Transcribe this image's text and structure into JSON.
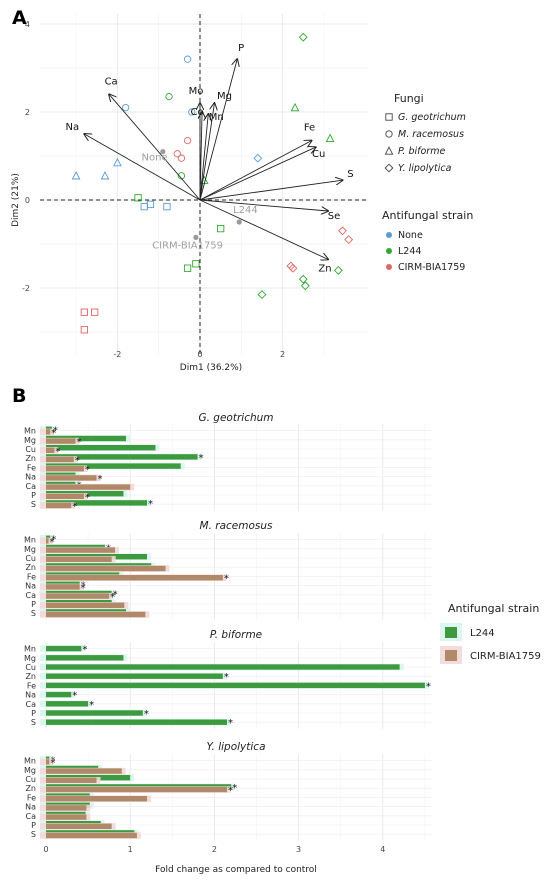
{
  "chart_data": [
    {
      "panel": "A",
      "type": "scatter",
      "subtype": "pca-biplot",
      "xlabel": "Dim1 (36.2%)",
      "ylabel": "Dim2 (21%)",
      "xlim": [
        -3.5,
        4
      ],
      "ylim": [
        -3.2,
        4
      ],
      "xticks": [
        "-2",
        "0",
        "2"
      ],
      "yticks": [
        "4",
        "2",
        "0",
        "-2"
      ],
      "grid": true,
      "variables": [
        {
          "name": "P",
          "x": 0.9,
          "y": 3.2
        },
        {
          "name": "Mo",
          "x": 0.0,
          "y": 2.2
        },
        {
          "name": "Mg",
          "x": 0.35,
          "y": 2.2
        },
        {
          "name": "Co",
          "x": 0.05,
          "y": 2.0
        },
        {
          "name": "Mn",
          "x": 0.2,
          "y": 1.95
        },
        {
          "name": "Ca",
          "x": -2.2,
          "y": 2.4
        },
        {
          "name": "Na",
          "x": -2.8,
          "y": 1.5
        },
        {
          "name": "Fe",
          "x": 2.7,
          "y": 1.35
        },
        {
          "name": "Cu",
          "x": 2.8,
          "y": 1.2
        },
        {
          "name": "S",
          "x": 3.45,
          "y": 0.45
        },
        {
          "name": "Se",
          "x": 3.1,
          "y": -0.25
        },
        {
          "name": "Zn",
          "x": 3.1,
          "y": -1.35
        }
      ],
      "centroid_labels": [
        {
          "name": "None",
          "x": -1.1,
          "y": 0.9
        },
        {
          "name": "L244",
          "x": 1.1,
          "y": -0.3
        },
        {
          "name": "CIRM-BIA1759",
          "x": -0.3,
          "y": -1.1
        }
      ],
      "centroids": [
        {
          "strain": "None",
          "x": -0.9,
          "y": 1.1
        },
        {
          "strain": "L244",
          "x": 0.95,
          "y": -0.5
        },
        {
          "strain": "CIRM-BIA1759",
          "x": -0.1,
          "y": -0.85
        }
      ],
      "points": [
        {
          "fungus": "G. geotrichum",
          "strain": "None",
          "x": -1.35,
          "y": -0.15
        },
        {
          "fungus": "G. geotrichum",
          "strain": "None",
          "x": -1.2,
          "y": -0.1
        },
        {
          "fungus": "G. geotrichum",
          "strain": "None",
          "x": -0.8,
          "y": -0.15
        },
        {
          "fungus": "G. geotrichum",
          "strain": "L244",
          "x": -0.3,
          "y": -1.55
        },
        {
          "fungus": "G. geotrichum",
          "strain": "L244",
          "x": -0.1,
          "y": -1.45
        },
        {
          "fungus": "G. geotrichum",
          "strain": "L244",
          "x": 0.5,
          "y": -0.65
        },
        {
          "fungus": "G. geotrichum",
          "strain": "L244",
          "x": -1.5,
          "y": 0.05
        },
        {
          "fungus": "G. geotrichum",
          "strain": "CIRM-BIA1759",
          "x": -2.8,
          "y": -2.55
        },
        {
          "fungus": "G. geotrichum",
          "strain": "CIRM-BIA1759",
          "x": -2.55,
          "y": -2.55
        },
        {
          "fungus": "G. geotrichum",
          "strain": "CIRM-BIA1759",
          "x": -2.8,
          "y": -2.95
        },
        {
          "fungus": "M. racemosus",
          "strain": "None",
          "x": -1.8,
          "y": 2.1
        },
        {
          "fungus": "M. racemosus",
          "strain": "None",
          "x": -0.3,
          "y": 3.2
        },
        {
          "fungus": "M. racemosus",
          "strain": "None",
          "x": -0.2,
          "y": 2.0
        },
        {
          "fungus": "M. racemosus",
          "strain": "L244",
          "x": -0.75,
          "y": 2.35
        },
        {
          "fungus": "M. racemosus",
          "strain": "L244",
          "x": -0.45,
          "y": 0.55
        },
        {
          "fungus": "M. racemosus",
          "strain": "CIRM-BIA1759",
          "x": -0.3,
          "y": 1.35
        },
        {
          "fungus": "M. racemosus",
          "strain": "CIRM-BIA1759",
          "x": -0.55,
          "y": 1.05
        },
        {
          "fungus": "M. racemosus",
          "strain": "CIRM-BIA1759",
          "x": -0.45,
          "y": 0.95
        },
        {
          "fungus": "P. biforme",
          "strain": "None",
          "x": -3.0,
          "y": 0.55
        },
        {
          "fungus": "P. biforme",
          "strain": "None",
          "x": -2.0,
          "y": 0.85
        },
        {
          "fungus": "P. biforme",
          "strain": "None",
          "x": -2.3,
          "y": 0.55
        },
        {
          "fungus": "P. biforme",
          "strain": "L244",
          "x": 2.3,
          "y": 2.1
        },
        {
          "fungus": "P. biforme",
          "strain": "L244",
          "x": 3.15,
          "y": 1.4
        },
        {
          "fungus": "P. biforme",
          "strain": "L244",
          "x": 0.1,
          "y": 0.45
        },
        {
          "fungus": "Y. lipolytica",
          "strain": "None",
          "x": 1.4,
          "y": 0.95
        },
        {
          "fungus": "Y. lipolytica",
          "strain": "L244",
          "x": 2.5,
          "y": 3.7
        },
        {
          "fungus": "Y. lipolytica",
          "strain": "L244",
          "x": 1.5,
          "y": -2.15
        },
        {
          "fungus": "Y. lipolytica",
          "strain": "L244",
          "x": 2.5,
          "y": -1.8
        },
        {
          "fungus": "Y. lipolytica",
          "strain": "L244",
          "x": 2.55,
          "y": -1.95
        },
        {
          "fungus": "Y. lipolytica",
          "strain": "L244",
          "x": 3.35,
          "y": -1.6
        },
        {
          "fungus": "Y. lipolytica",
          "strain": "CIRM-BIA1759",
          "x": 3.45,
          "y": -0.7
        },
        {
          "fungus": "Y. lipolytica",
          "strain": "CIRM-BIA1759",
          "x": 3.6,
          "y": -0.9
        },
        {
          "fungus": "Y. lipolytica",
          "strain": "CIRM-BIA1759",
          "x": 2.2,
          "y": -1.5
        },
        {
          "fungus": "Y. lipolytica",
          "strain": "CIRM-BIA1759",
          "x": 2.25,
          "y": -1.55
        }
      ],
      "legend_fungi": {
        "title": "Fungi",
        "items": [
          {
            "label": "G. geotrichum",
            "shape": "square"
          },
          {
            "label": "M. racemosus",
            "shape": "circle"
          },
          {
            "label": "P. biforme",
            "shape": "triangle"
          },
          {
            "label": "Y. lipolytica",
            "shape": "diamond"
          }
        ]
      },
      "legend_strain": {
        "title": "Antifungal strain",
        "items": [
          {
            "label": "None",
            "color": "#5b9bd5"
          },
          {
            "label": "L244",
            "color": "#2eaa2e"
          },
          {
            "label": "CIRM-BIA1759",
            "color": "#e06666"
          }
        ]
      }
    },
    {
      "panel": "B",
      "type": "bar",
      "orientation": "horizontal",
      "xlabel": "Fold change as compared to control",
      "xlim": [
        -0.05,
        4.75
      ],
      "xticks": [
        0,
        1,
        2,
        3,
        4
      ],
      "categories": [
        "Mn",
        "Mg",
        "Cu",
        "Zn",
        "Fe",
        "Na",
        "Ca",
        "P",
        "S"
      ],
      "legend": {
        "title": "Antifungal strain",
        "items": [
          {
            "label": "L244",
            "color": "#3e9a3e"
          },
          {
            "label": "CIRM-BIA1759",
            "color": "#b08a68"
          }
        ]
      },
      "facets": [
        {
          "title": "G. geotrichum",
          "series": [
            {
              "name": "L244",
              "values": [
                0.07,
                0.95,
                1.3,
                1.8,
                1.6,
                0.35,
                0.35,
                0.92,
                1.2
              ],
              "sig": [
                true,
                false,
                false,
                true,
                false,
                false,
                true,
                false,
                true
              ]
            },
            {
              "name": "CIRM-BIA1759",
              "values": [
                0.05,
                0.35,
                0.1,
                0.33,
                0.45,
                0.6,
                1.0,
                0.45,
                0.3
              ],
              "sig": [
                true,
                true,
                true,
                true,
                true,
                true,
                false,
                true,
                true
              ]
            }
          ]
        },
        {
          "title": "M. racemosus",
          "series": [
            {
              "name": "L244",
              "values": [
                0.05,
                0.7,
                1.2,
                1.25,
                0.87,
                0.4,
                0.78,
                0.78,
                0.95
              ],
              "sig": [
                true,
                true,
                false,
                false,
                false,
                true,
                true,
                false,
                false
              ]
            },
            {
              "name": "CIRM-BIA1759",
              "values": [
                0.03,
                0.82,
                0.78,
                1.42,
                2.1,
                0.4,
                0.75,
                0.93,
                1.18
              ],
              "sig": [
                true,
                false,
                false,
                false,
                true,
                true,
                true,
                false,
                false
              ]
            }
          ]
        },
        {
          "title": "P. biforme",
          "series": [
            {
              "name": "L244",
              "values": [
                0.42,
                0.92,
                4.2,
                2.1,
                4.5,
                0.3,
                0.5,
                1.15,
                2.15
              ],
              "sig": [
                true,
                false,
                false,
                true,
                true,
                true,
                true,
                true,
                true
              ]
            }
          ]
        },
        {
          "title": "Y. lipolytica",
          "series": [
            {
              "name": "L244",
              "values": [
                0.04,
                0.62,
                1.0,
                2.2,
                0.52,
                0.52,
                0.47,
                0.65,
                1.05
              ],
              "sig": [
                true,
                false,
                false,
                true,
                false,
                false,
                false,
                false,
                false
              ]
            },
            {
              "name": "CIRM-BIA1759",
              "values": [
                0.04,
                0.9,
                0.6,
                2.15,
                1.2,
                0.48,
                0.48,
                0.78,
                1.08
              ],
              "sig": [
                true,
                false,
                false,
                true,
                false,
                false,
                false,
                false,
                false
              ]
            }
          ]
        }
      ]
    }
  ],
  "panel_labels": {
    "a": "A",
    "b": "B"
  },
  "colors": {
    "none": "#5b9bd5",
    "l244_point": "#2eaa2e",
    "cirm_point": "#e06666",
    "l244_bar": "#3e9a3e",
    "cirm_bar": "#b08a68",
    "bar_shadow": "#d8f6ee",
    "bar_shadow_cirm": "#f3d8d8",
    "grid": "#e2e2e2",
    "arrow": "#222222",
    "centroid_label": "#a0a0a0"
  }
}
